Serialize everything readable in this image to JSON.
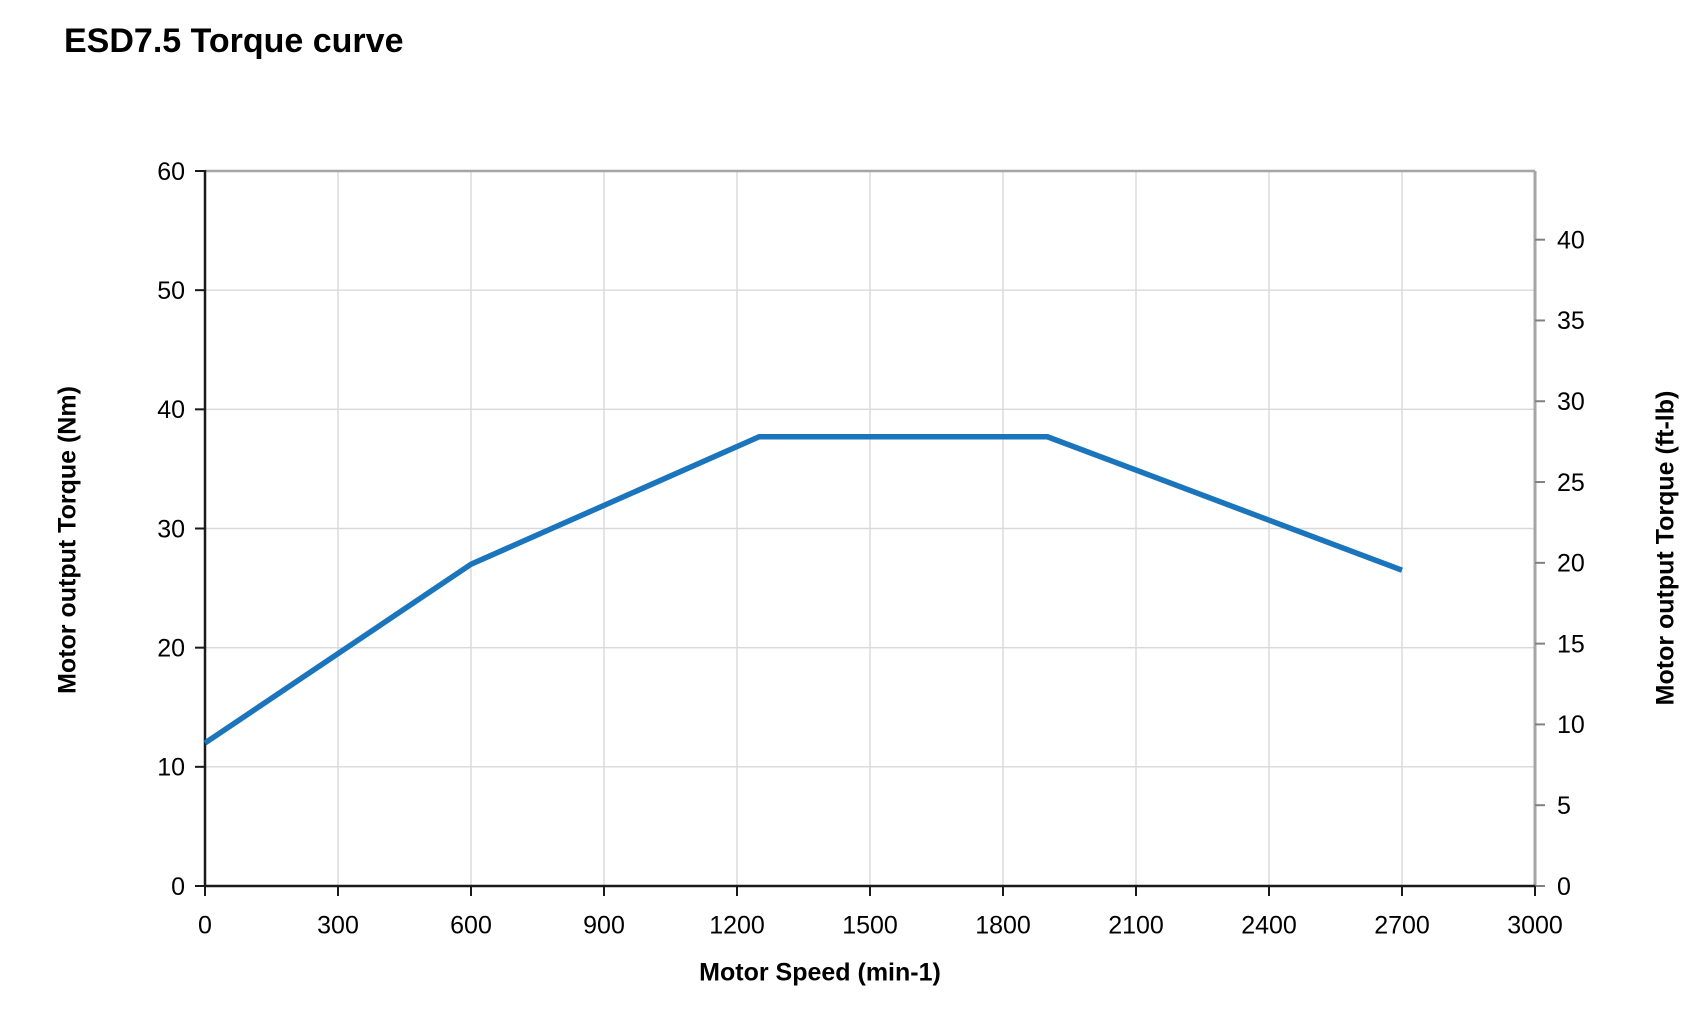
{
  "chart_data": {
    "type": "line",
    "title": "ESD7.5 Torque curve",
    "xlabel": "Motor Speed (min-1)",
    "ylabel_left": "Motor output Torque (Nm)",
    "ylabel_right": "Motor output Torque (ft-lb)",
    "xlim": [
      0,
      3000
    ],
    "ylim_left": [
      0,
      60
    ],
    "ylim_right": [
      0,
      44.25
    ],
    "x_ticks": [
      0,
      300,
      600,
      900,
      1200,
      1500,
      1800,
      2100,
      2400,
      2700,
      3000
    ],
    "y_ticks_left": [
      0,
      10,
      20,
      30,
      40,
      50,
      60
    ],
    "y_ticks_right": [
      0,
      5,
      10,
      15,
      20,
      25,
      30,
      35,
      40
    ],
    "grid": true,
    "legend": "none",
    "colors": {
      "line": "#1b75bc",
      "gridline": "#d9d9d9",
      "axis_dark": "#1a1a1a",
      "frame_gray": "#a6a6a6",
      "tick_right": "#808080",
      "text": "#000000"
    },
    "series": [
      {
        "axis": "left",
        "color": "#1b75bc",
        "points_x": [
          0,
          600,
          1250,
          1900,
          2700
        ],
        "points_y_nm": [
          12,
          27,
          37.7,
          37.7,
          26.5
        ]
      }
    ]
  }
}
